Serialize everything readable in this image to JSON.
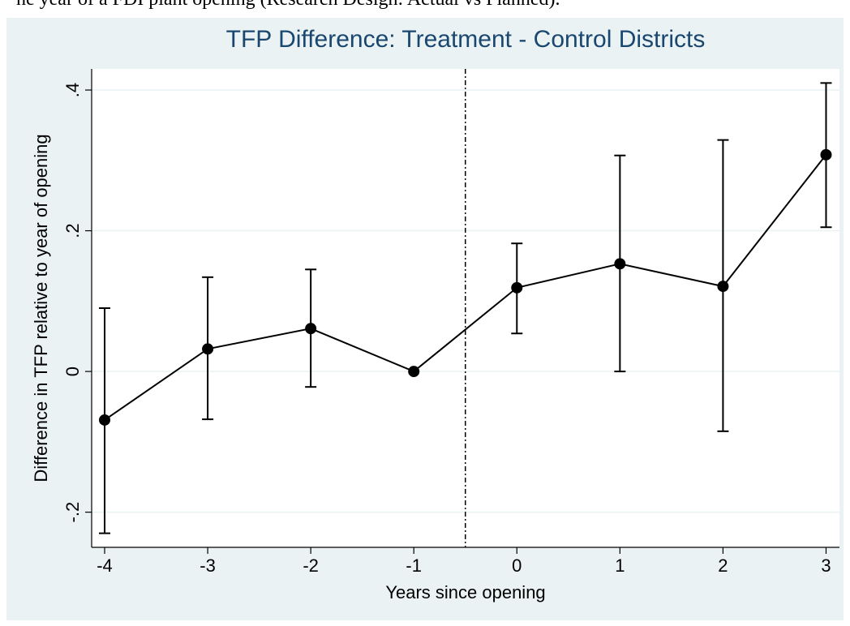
{
  "caption": "he year of a FDI plant opening (Research Design: Actual vs Planned).",
  "chart_data": {
    "type": "line",
    "title": "TFP Difference: Treatment - Control Districts",
    "x_label": "Years since opening",
    "y_label": "Difference in TFP relative to year of opening",
    "x": [
      -4,
      -3,
      -2,
      -1,
      0,
      1,
      2,
      3
    ],
    "series": [
      {
        "color": "#000000",
        "values": [
          -0.069,
          0.032,
          0.061,
          0,
          0.119,
          0.153,
          0.121,
          0.308
        ],
        "ci_low": [
          -0.23,
          -0.068,
          -0.022,
          null,
          0.054,
          0.0,
          -0.085,
          0.205
        ],
        "ci_high": [
          0.09,
          0.134,
          0.145,
          null,
          0.182,
          0.307,
          0.329,
          0.41
        ]
      }
    ],
    "xlim": [
      -4.126,
      3.13
    ],
    "ylim": [
      -0.25,
      0.43
    ],
    "xticks": [
      -4,
      -3,
      -2,
      -1,
      0,
      1,
      2,
      3
    ],
    "yticks": [
      {
        "value": -0.2,
        "label": "-.2"
      },
      0,
      {
        "value": 0.2,
        "label": ".2"
      },
      {
        "value": 0.4,
        "label": ".4"
      }
    ],
    "vline": -0.5,
    "grid": true
  }
}
